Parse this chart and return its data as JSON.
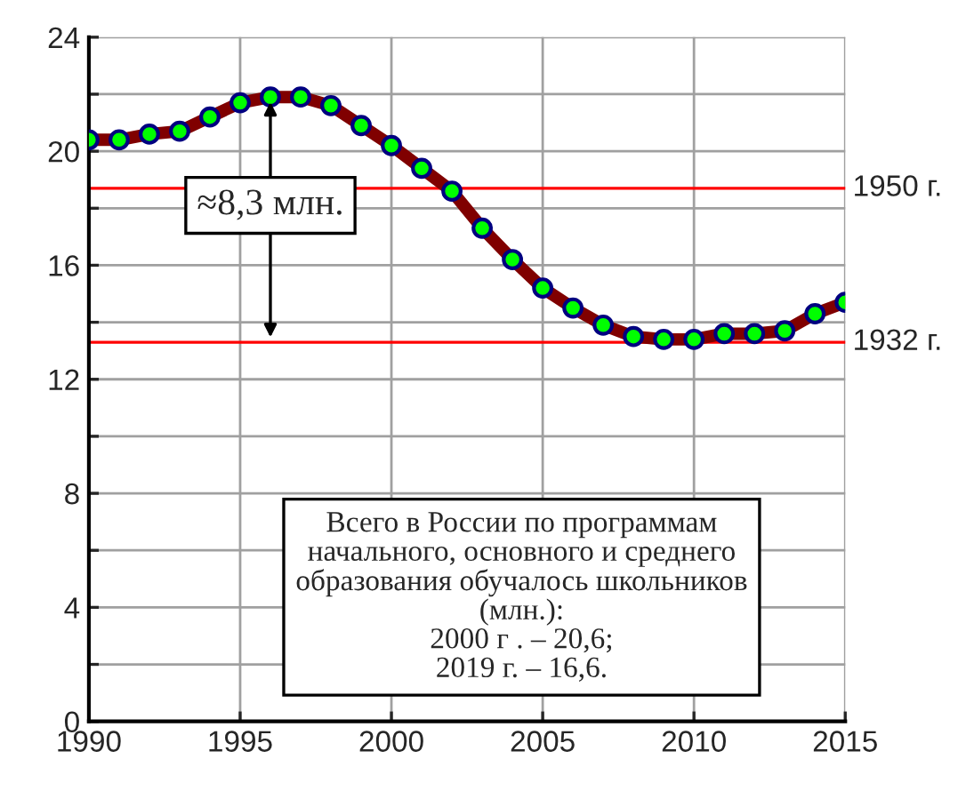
{
  "chart_data": {
    "type": "line",
    "x": [
      1990,
      1991,
      1992,
      1993,
      1994,
      1995,
      1996,
      1997,
      1998,
      1999,
      2000,
      2001,
      2002,
      2003,
      2004,
      2005,
      2006,
      2007,
      2008,
      2009,
      2010,
      2011,
      2012,
      2013,
      2014,
      2015
    ],
    "series": [
      {
        "color": "#800000",
        "values": [
          20.4,
          20.4,
          20.6,
          20.7,
          21.2,
          21.7,
          21.9,
          21.9,
          21.6,
          20.9,
          20.2,
          19.4,
          18.6,
          17.3,
          16.2,
          15.2,
          14.5,
          13.9,
          13.5,
          13.4,
          13.4,
          13.6,
          13.6,
          13.7,
          14.3,
          14.7
        ]
      }
    ],
    "marker": "circle",
    "xlim": [
      1990,
      2015
    ],
    "xticks": [
      1990,
      1995,
      2000,
      2005,
      2010,
      2015
    ],
    "ylim": [
      0,
      24
    ],
    "yticks": [
      0,
      {
        "value": 2,
        "label": null
      },
      4,
      {
        "value": 6,
        "label": null
      },
      8,
      {
        "value": 10,
        "label": null
      },
      12,
      {
        "value": 14,
        "label": null
      },
      16,
      {
        "value": 18,
        "label": null
      },
      20,
      {
        "value": 22,
        "label": null
      },
      24
    ],
    "grid": true,
    "ref_lines": [
      {
        "axis": "y",
        "value": 18.7,
        "label": "1950 г.",
        "color": "#ff0000"
      },
      {
        "axis": "y",
        "value": 13.3,
        "label": "1932 г.",
        "color": "#ff0000"
      }
    ],
    "annotations": [
      {
        "text": "≈8,3 млн.",
        "x": 1996,
        "y": 21.9
      },
      "Всего в России по программам\nначального, основного и среднего\nобразования обучалось школьников\n(млн.):\n2000 г . – 20,6;\n2019 г. – 16,6."
    ]
  }
}
